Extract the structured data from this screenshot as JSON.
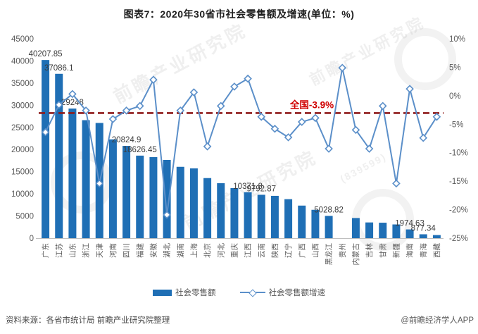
{
  "title": "图表7：2020年30省市社会零售额及增速(单位：%)",
  "annotation": {
    "national_line_label": "全国-3.9%",
    "national_growth_pct": -3.9
  },
  "legend": {
    "bar_label": "社会零售额",
    "line_label": "社会零售额增速"
  },
  "footer": {
    "source": "资料来源：各省市统计局 前瞻产业研究院整理",
    "credit": "@前瞻经济学人APP"
  },
  "watermark": {
    "text": "前瞻产业研究院",
    "code": "(839599)"
  },
  "colors": {
    "bar": "#1F6FB5",
    "line": "#5B8FC9",
    "dashed": "#8E1A1A",
    "annotation": "#D00000",
    "axis_text": "#595959",
    "data_label": "#3B3B3B",
    "axis_line": "#BFBFBF"
  },
  "chart_data": {
    "type": "bar+line",
    "title": "图表7：2020年30省市社会零售额及增速(单位：%)",
    "categories": [
      "广东",
      "江苏",
      "山东",
      "浙江",
      "天津",
      "河南",
      "四川",
      "福建",
      "安徽",
      "湖北",
      "湖南",
      "上海",
      "北京",
      "河北",
      "重庆",
      "江西",
      "云南",
      "陕西",
      "辽宁",
      "广西",
      "山西",
      "黑龙江",
      "贵州",
      "内蒙古",
      "吉林",
      "甘肃",
      "新疆",
      "海南",
      "青海",
      "西藏"
    ],
    "series": [
      {
        "name": "社会零售额",
        "type": "bar",
        "axis": "left",
        "values": [
          40207.85,
          37086.1,
          29248,
          26630,
          26000,
          22300,
          20824.9,
          18626.45,
          18300,
          17650,
          16100,
          15750,
          13560,
          12400,
          11300,
          10371.8,
          9792.87,
          9550,
          8800,
          7350,
          6400,
          5028.82,
          null,
          4550,
          3550,
          3490,
          3100,
          1974.63,
          877.34,
          700
        ],
        "labels": [
          "40207.85",
          "37086.1",
          "29248",
          null,
          null,
          null,
          "20824.9",
          "18626.45",
          null,
          null,
          null,
          null,
          null,
          null,
          null,
          "10371.8",
          "9792.87",
          null,
          null,
          null,
          null,
          "5028.82",
          null,
          null,
          null,
          null,
          null,
          "1974.63",
          "877.34",
          null
        ]
      },
      {
        "name": "社会零售额增速",
        "type": "line",
        "axis": "right",
        "values": [
          -6.4,
          -1.6,
          0.3,
          -2.6,
          -15.4,
          -4.1,
          -2.6,
          -1.8,
          2.8,
          -20.9,
          -2.6,
          0.6,
          -8.9,
          -1.8,
          1.6,
          3.0,
          -3.7,
          -5.8,
          -7.3,
          -4.6,
          -3.9,
          -9.3,
          4.9,
          -6.0,
          -9.3,
          -1.8,
          -15.4,
          1.2,
          -7.4,
          -3.7
        ]
      }
    ],
    "left_axis": {
      "min": 0,
      "max": 45000,
      "step": 5000,
      "ticks": [
        "45000",
        "40000",
        "35000",
        "30000",
        "25000",
        "20000",
        "15000",
        "10000",
        "5000",
        "0"
      ]
    },
    "right_axis": {
      "min": -25,
      "max": 10,
      "step": 5,
      "ticks": [
        "10%",
        "5%",
        "0%",
        "-5%",
        "-10%",
        "-15%",
        "-20%",
        "-25%"
      ]
    },
    "grid": false,
    "legend_position": "bottom",
    "reference_line": {
      "value": -3.9,
      "label": "全国-3.9%",
      "style": "dashed"
    }
  }
}
